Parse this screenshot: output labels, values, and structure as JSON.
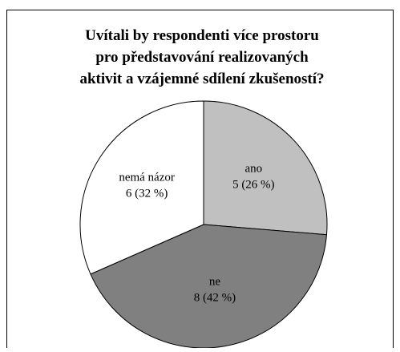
{
  "chart_data": {
    "type": "pie",
    "title": [
      "Uvítali by respondenti více prostoru",
      "pro představování realizovaných",
      "aktivit a vzájemné sdílení zkušeností?"
    ],
    "categories": [
      "ano",
      "ne",
      "nemá názor"
    ],
    "values": [
      5,
      8,
      6
    ],
    "value_labels": [
      "5 (26 %)",
      "8 (42 %)",
      "6 (32 %)"
    ],
    "colors": [
      "#c0c0c0",
      "#808080",
      "#ffffff"
    ]
  }
}
